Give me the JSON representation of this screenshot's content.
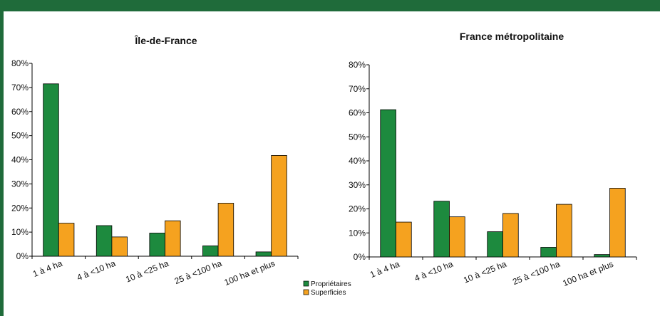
{
  "colors": {
    "proprietaires": "#1d8a3e",
    "superficies": "#f5a21f",
    "frame": "#1f6b3a"
  },
  "legend": {
    "proprietaires": "Propriétaires",
    "superficies": "Superficies"
  },
  "chart_data": [
    {
      "type": "bar",
      "title": "Île-de-France",
      "categories": [
        "1 à 4 ha",
        "4 à <10 ha",
        "10 à <25 ha",
        "25 à <100 ha",
        "100 ha et plus"
      ],
      "y_ticks": [
        "0%",
        "10%",
        "20%",
        "30%",
        "40%",
        "50%",
        "60%",
        "70%",
        "80%"
      ],
      "ylim": [
        0,
        80
      ],
      "series": [
        {
          "name": "Propriétaires",
          "values": [
            71.5,
            12.7,
            9.6,
            4.3,
            1.8
          ]
        },
        {
          "name": "Superficies",
          "values": [
            13.7,
            8.0,
            14.7,
            22.0,
            41.8
          ]
        }
      ]
    },
    {
      "type": "bar",
      "title": "France métropolitaine",
      "categories": [
        "1 à 4 ha",
        "4 à <10 ha",
        "10 à <25 ha",
        "25 à <100 ha",
        "100 ha et plus"
      ],
      "y_ticks": [
        "0%",
        "10%",
        "20%",
        "30%",
        "40%",
        "50%",
        "60%",
        "70%",
        "80%"
      ],
      "ylim": [
        0,
        80
      ],
      "series": [
        {
          "name": "Propriétaires",
          "values": [
            61.3,
            23.2,
            10.5,
            4.0,
            1.0
          ]
        },
        {
          "name": "Superficies",
          "values": [
            14.5,
            16.7,
            18.1,
            21.9,
            28.6
          ]
        }
      ]
    }
  ]
}
